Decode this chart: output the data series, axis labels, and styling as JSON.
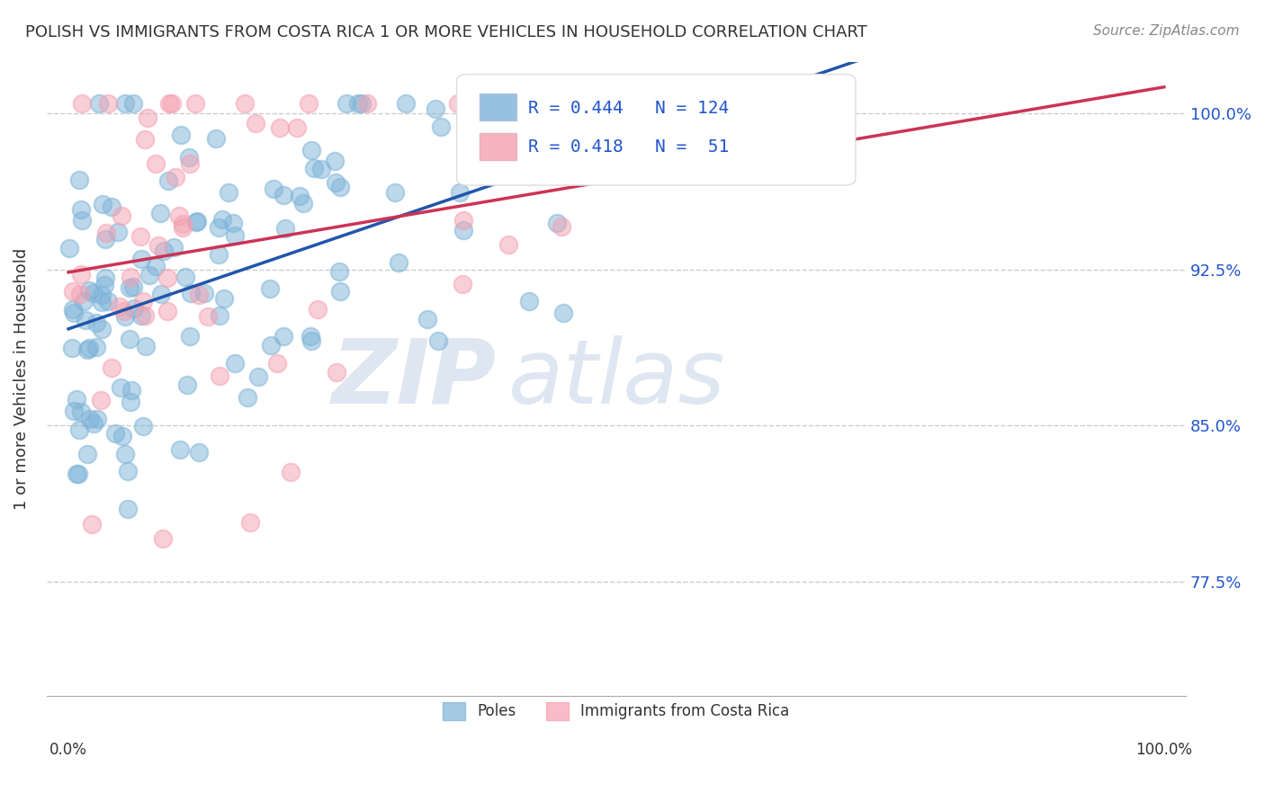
{
  "title": "POLISH VS IMMIGRANTS FROM COSTA RICA 1 OR MORE VEHICLES IN HOUSEHOLD CORRELATION CHART",
  "source": "Source: ZipAtlas.com",
  "ylabel": "1 or more Vehicles in Household",
  "legend_blue_label": "Poles",
  "legend_pink_label": "Immigrants from Costa Rica",
  "R_blue": 0.444,
  "N_blue": 124,
  "R_pink": 0.418,
  "N_pink": 51,
  "blue_color": "#7db3d8",
  "pink_color": "#f4a0b0",
  "blue_line_color": "#2255aa",
  "pink_line_color": "#cc3355",
  "watermark_zip": "ZIP",
  "watermark_atlas": "atlas",
  "ytick_positions": [
    0.775,
    0.85,
    0.925,
    1.0
  ],
  "ytick_labels": [
    "77.5%",
    "85.0%",
    "92.5%",
    "100.0%"
  ],
  "ylim": [
    0.72,
    1.025
  ],
  "xlim": [
    -0.02,
    1.02
  ]
}
